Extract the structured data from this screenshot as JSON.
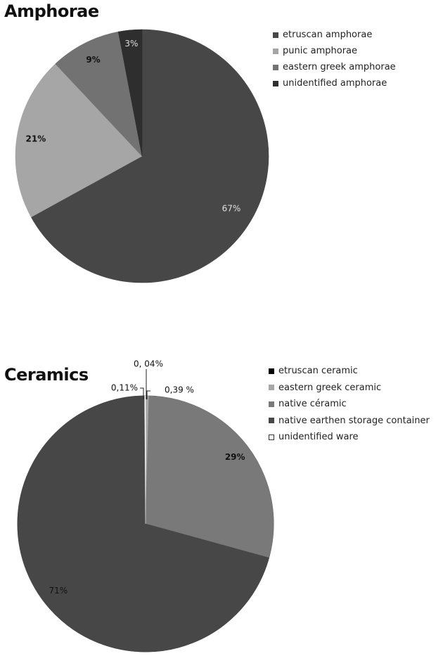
{
  "chart_data": [
    {
      "type": "pie",
      "title": "Amphorae",
      "slices": [
        {
          "label": "etruscan amphorae",
          "value": 67,
          "display": "67%",
          "color": "#474747",
          "label_color": "#e0e0e0"
        },
        {
          "label": "punic amphorae",
          "value": 21,
          "display": "21%",
          "color": "#a6a6a6",
          "label_color": "#111111"
        },
        {
          "label": "eastern greek amphorae",
          "value": 9,
          "display": "9%",
          "color": "#727272",
          "label_color": "#111111"
        },
        {
          "label": "unidentified amphorae",
          "value": 3,
          "display": "3%",
          "color": "#2e2e2e",
          "label_color": "#dddddd"
        }
      ],
      "start_angle_deg": 0,
      "direction": "clockwise",
      "legend_position": "right"
    },
    {
      "type": "pie",
      "title": "Ceramics",
      "slices": [
        {
          "label": "etruscan ceramic",
          "value": 0.04,
          "display": "0, 04%",
          "color": "#000000"
        },
        {
          "label": "eastern greek ceramic",
          "value": 0.39,
          "display": "0,39 %",
          "color": "#a8a8a8"
        },
        {
          "label": "native céramic",
          "value": 29,
          "display": "29%",
          "color": "#797979"
        },
        {
          "label": "native earthen storage container",
          "value": 71,
          "display": "71%",
          "color": "#474747"
        },
        {
          "label": "unidentified ware",
          "value": 0.11,
          "display": "0,11%",
          "color": "#ffffff"
        }
      ],
      "start_angle_deg": 0,
      "direction": "clockwise",
      "legend_position": "right"
    }
  ]
}
